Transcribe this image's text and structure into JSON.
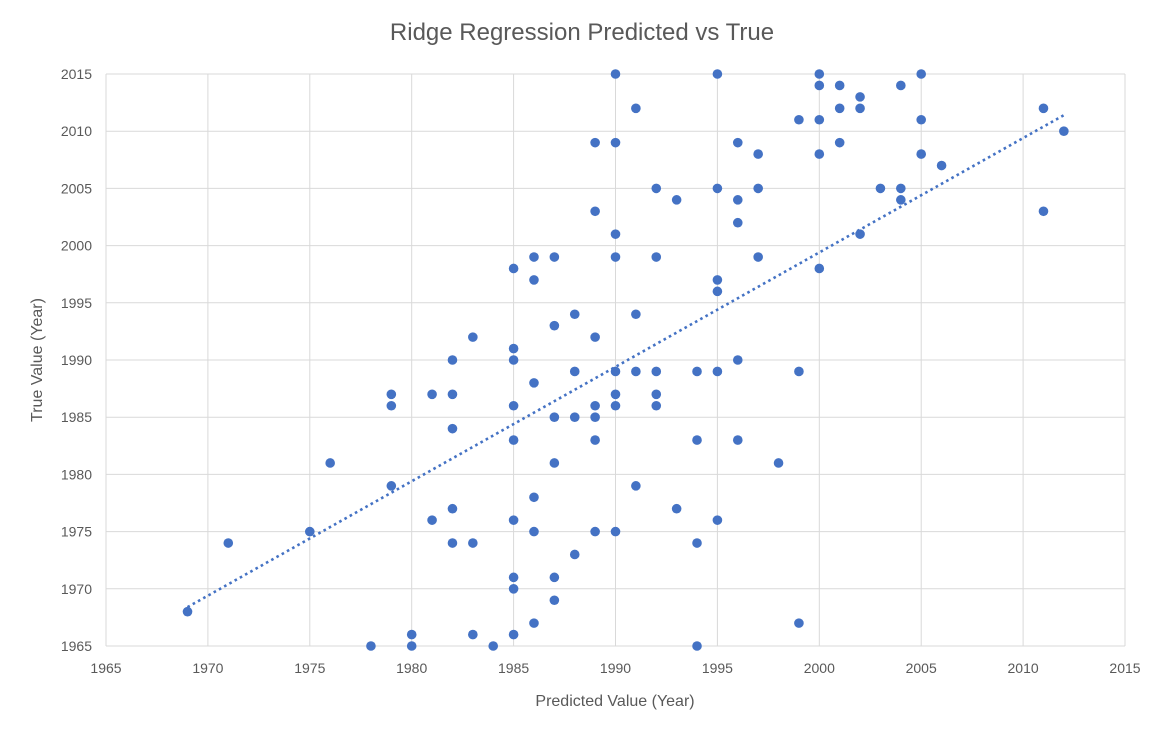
{
  "chart_data": {
    "type": "scatter",
    "title": "Ridge Regression Predicted vs True",
    "xlabel": "Predicted Value (Year)",
    "ylabel": "True Value (Year)",
    "xlim": [
      1965,
      2015
    ],
    "ylim": [
      1965,
      2015
    ],
    "x_ticks": [
      "1965",
      "1970",
      "1975",
      "1980",
      "1985",
      "1990",
      "1995",
      "2000",
      "2005",
      "2010",
      "2015"
    ],
    "y_ticks": [
      "1965",
      "1970",
      "1975",
      "1980",
      "1985",
      "1990",
      "1995",
      "2000",
      "2005",
      "2010",
      "2015"
    ],
    "grid": true,
    "legend": "none",
    "marker_color": "#4472C4",
    "trendline": {
      "type": "linear",
      "style": "dotted",
      "x": [
        1969,
        2012
      ],
      "y": [
        1968.4,
        2011.4
      ]
    },
    "points": {
      "x": [
        1969,
        1971,
        1975,
        1976,
        1978,
        1979,
        1979,
        1979,
        1980,
        1980,
        1981,
        1981,
        1982,
        1982,
        1982,
        1982,
        1982,
        1983,
        1983,
        1983,
        1984,
        1985,
        1985,
        1985,
        1985,
        1985,
        1985,
        1985,
        1985,
        1985,
        1986,
        1986,
        1986,
        1986,
        1986,
        1986,
        1987,
        1987,
        1987,
        1987,
        1987,
        1987,
        1988,
        1988,
        1988,
        1988,
        1989,
        1989,
        1989,
        1989,
        1989,
        1989,
        1989,
        1990,
        1990,
        1990,
        1990,
        1990,
        1990,
        1990,
        1990,
        1991,
        1991,
        1991,
        1991,
        1992,
        1992,
        1992,
        1992,
        1992,
        1993,
        1993,
        1994,
        1994,
        1994,
        1994,
        1995,
        1995,
        1995,
        1995,
        1995,
        1995,
        1996,
        1996,
        1996,
        1996,
        1996,
        1997,
        1997,
        1997,
        1998,
        1999,
        1999,
        1999,
        2000,
        2000,
        2000,
        2000,
        2000,
        2001,
        2001,
        2001,
        2002,
        2002,
        2002,
        2003,
        2004,
        2004,
        2004,
        2005,
        2005,
        2005,
        2006,
        2011,
        2011,
        2012
      ],
      "y": [
        1968,
        1974,
        1975,
        1981,
        1965,
        1979,
        1986,
        1987,
        1965,
        1966,
        1976,
        1987,
        1974,
        1977,
        1984,
        1987,
        1990,
        1966,
        1974,
        1992,
        1965,
        1966,
        1970,
        1971,
        1976,
        1983,
        1986,
        1990,
        1991,
        1998,
        1967,
        1975,
        1978,
        1988,
        1997,
        1999,
        1969,
        1971,
        1981,
        1985,
        1993,
        1999,
        1973,
        1985,
        1989,
        1994,
        1975,
        1983,
        1985,
        1986,
        1992,
        2003,
        2009,
        1975,
        1986,
        1987,
        1989,
        1999,
        2001,
        2009,
        2015,
        1979,
        1989,
        1994,
        2012,
        1986,
        1987,
        1989,
        1999,
        2005,
        1977,
        2004,
        1965,
        1974,
        1983,
        1989,
        1976,
        1989,
        1996,
        1997,
        2005,
        2015,
        1983,
        1990,
        2002,
        2004,
        2009,
        1999,
        2005,
        2008,
        1981,
        1967,
        1989,
        2011,
        1998,
        2008,
        2011,
        2014,
        2015,
        2009,
        2012,
        2014,
        2001,
        2012,
        2013,
        2005,
        2004,
        2005,
        2014,
        2008,
        2011,
        2015,
        2007,
        2003,
        2012,
        2010
      ]
    }
  }
}
